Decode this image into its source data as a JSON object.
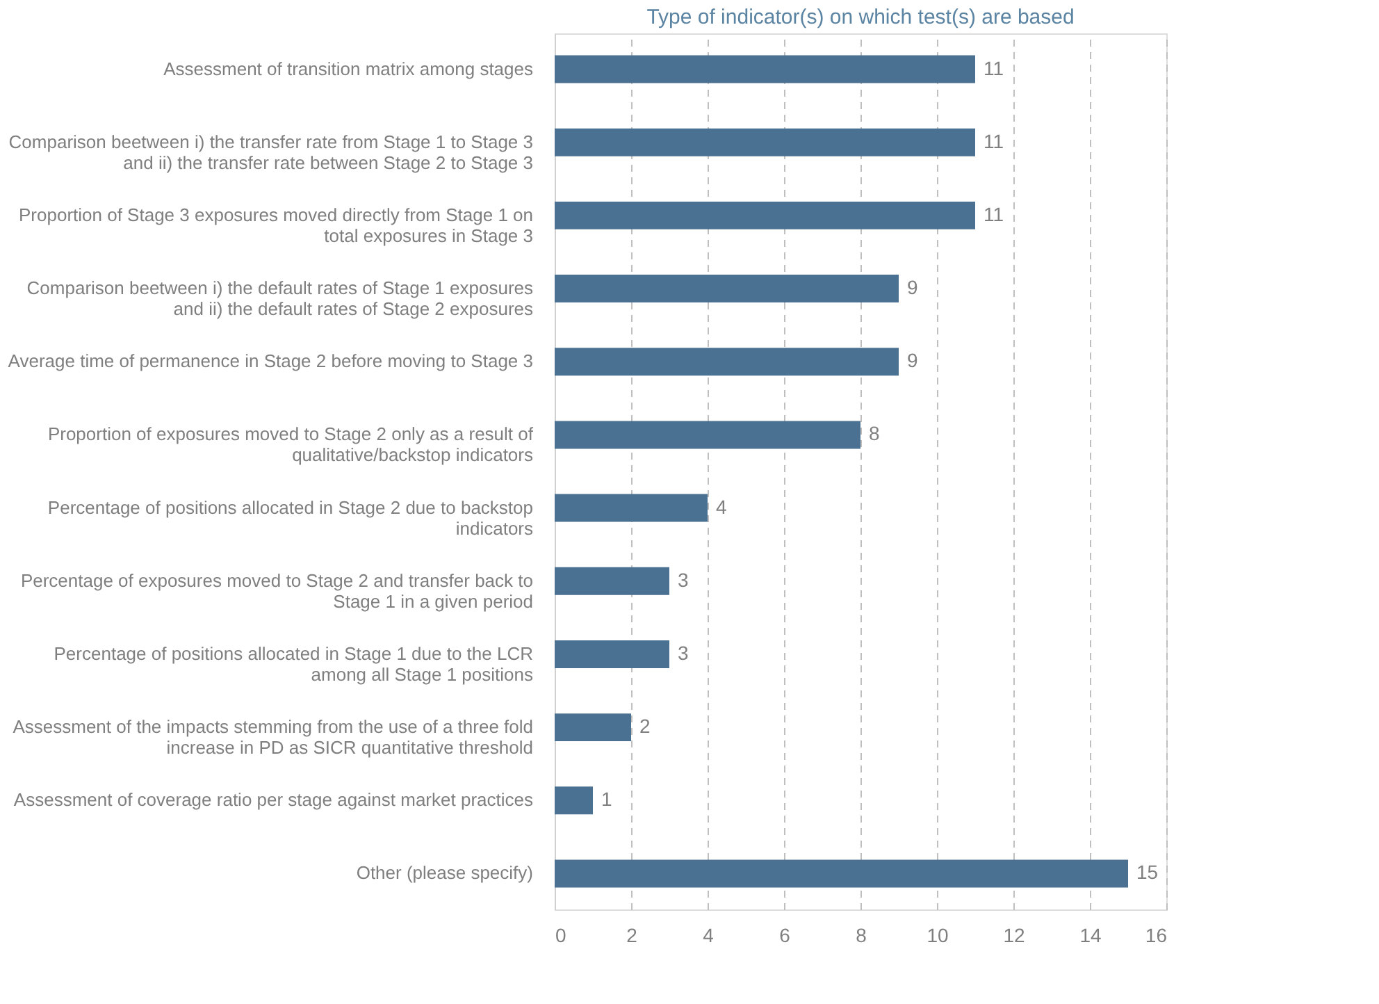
{
  "chart_data": {
    "type": "bar",
    "orientation": "horizontal",
    "title": "Type of indicator(s) on which test(s) are based",
    "categories": [
      "Assessment of transition matrix among stages",
      "Comparison beetween i) the transfer rate from Stage 1 to Stage 3 and ii) the transfer rate between Stage 2 to Stage 3",
      "Proportion of Stage 3 exposures moved  directly from Stage 1 on total exposures in Stage 3",
      "Comparison beetween i) the default rates of Stage 1 exposures and ii) the default rates of Stage 2 exposures",
      "Average time of permanence in Stage 2 before moving to Stage 3",
      "Proportion of exposures moved to Stage 2 only as a result of qualitative/backstop indicators",
      "Percentage of positions allocated in Stage 2 due to backstop indicators",
      "Percentage of exposures moved to Stage 2 and transfer back to Stage 1 in a given period",
      "Percentage of positions allocated in Stage 1 due to the LCR among all Stage 1 positions",
      "Assessment of the impacts stemming from the use of a three fold increase in PD as SICR quantitative threshold",
      "Assessment of coverage ratio  per stage against market practices",
      "Other (please specify)"
    ],
    "values": [
      11,
      11,
      11,
      9,
      9,
      8,
      4,
      3,
      3,
      2,
      1,
      15
    ],
    "color": "#4a7191",
    "xlim": [
      0,
      16
    ],
    "xticks": [
      0,
      2,
      4,
      6,
      8,
      10,
      12,
      14,
      16
    ],
    "grid": "x",
    "data_labels": true
  }
}
